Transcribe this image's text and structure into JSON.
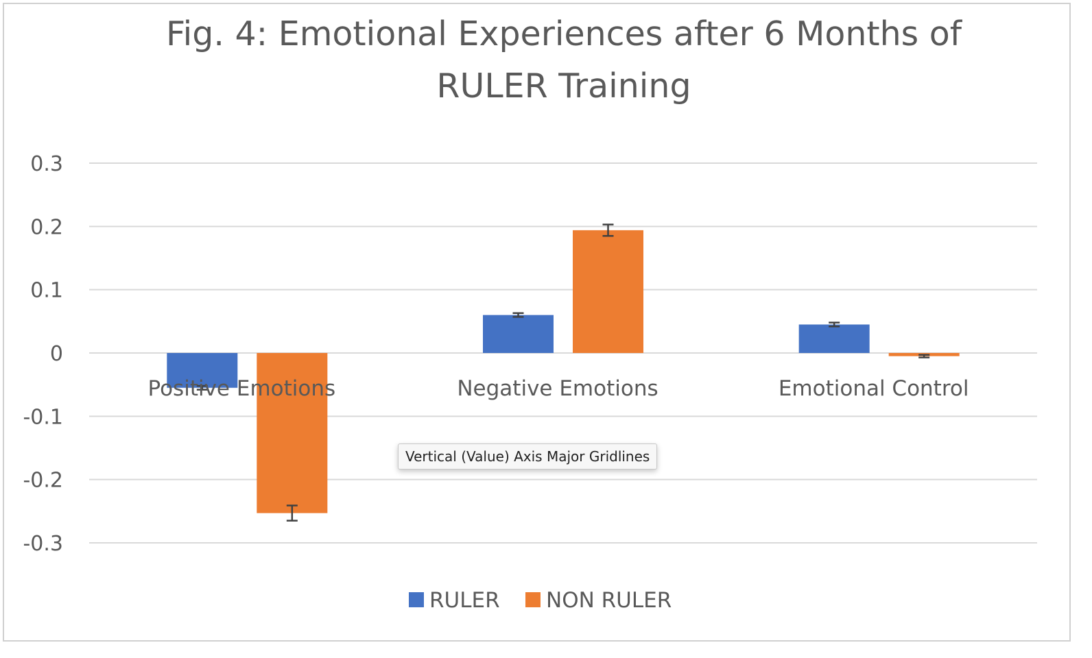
{
  "tooltip": {
    "text": "Vertical (Value) Axis Major Gridlines"
  },
  "chart_data": {
    "type": "bar",
    "title_lines": [
      "Fig. 4: Emotional Experiences after 6 Months of",
      "RULER Training"
    ],
    "xlabel": "",
    "ylabel": "",
    "categories": [
      "Positive Emotions",
      "Negative Emotions",
      "Emotional Control"
    ],
    "series": [
      {
        "name": "RULER",
        "color": "#4472c4",
        "values": [
          -0.055,
          0.06,
          0.045
        ],
        "error": [
          0.003,
          0.003,
          0.003
        ]
      },
      {
        "name": "NON RULER",
        "color": "#ed7d31",
        "values": [
          -0.253,
          0.194,
          -0.005
        ],
        "error": [
          0.012,
          0.009,
          0.002
        ]
      }
    ],
    "ylim": [
      -0.3,
      0.3
    ],
    "yticks": [
      0.3,
      0.2,
      0.1,
      0,
      -0.1,
      -0.2,
      -0.3
    ],
    "ytick_labels": [
      "0.3",
      "0.2",
      "0.1",
      "0",
      "-0.1",
      "-0.2",
      "-0.3"
    ],
    "grid": true,
    "legend": "bottom",
    "gridline_color": "#d9d9d9",
    "text_color": "#595959"
  }
}
